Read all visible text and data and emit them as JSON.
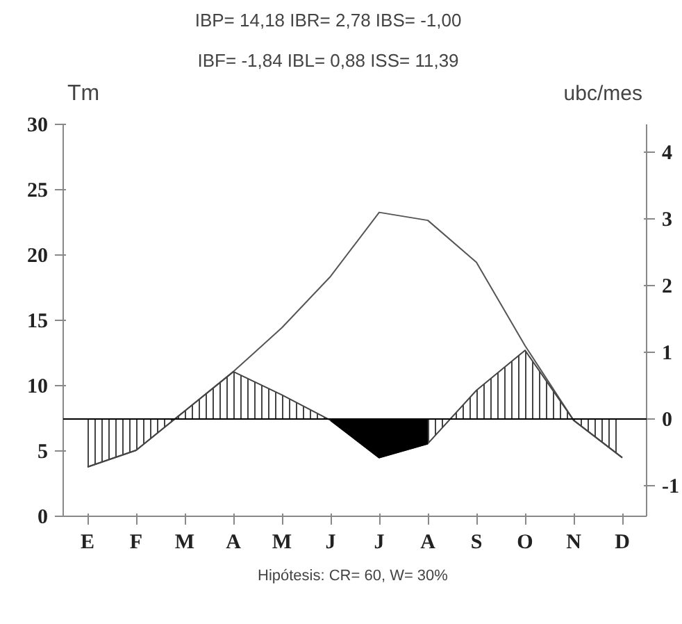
{
  "chart_data": {
    "type": "line",
    "ylabel": "Tm",
    "y2label": "ubc/mes",
    "annotations": [
      "IBP= 14,18   IBR= 2,78   IBS= -1,00",
      "IBF= -1,84   IBL= 0,88   ISS= 11,39",
      "Hipótesis: CR= 60,  W= 30%"
    ],
    "categories": [
      "E",
      "F",
      "M",
      "A",
      "M",
      "J",
      "J",
      "A",
      "S",
      "O",
      "N",
      "D"
    ],
    "ylim": [
      0,
      30
    ],
    "yticks": [
      0,
      5,
      10,
      15,
      20,
      25,
      30
    ],
    "y2lim": [
      -1.46,
      4.42
    ],
    "y2ticks": [
      -1,
      0,
      1,
      2,
      3,
      4
    ],
    "grid": false,
    "marker": "none",
    "line_style": "solid",
    "ref_lines": [
      {
        "axis": "y2",
        "value": 0,
        "color": "#000000"
      }
    ],
    "series": [
      {
        "axis": "y2",
        "color": "#555555",
        "values": [
          -0.72,
          -0.47,
          0.12,
          0.71,
          1.37,
          2.14,
          3.1,
          2.98,
          2.35,
          1.1,
          -0.02,
          -0.58
        ]
      },
      {
        "type": "area",
        "axis": "y2",
        "color": "#444444",
        "values": [
          -0.72,
          -0.47,
          0.12,
          0.71,
          0.36,
          -0.02,
          -0.58,
          -0.37,
          0.43,
          1.03,
          -0.02,
          -0.58
        ]
      },
      {
        "type": "area",
        "axis": "y2",
        "color": "#000000",
        "values": [
          null,
          null,
          null,
          null,
          null,
          -0.02,
          -0.58,
          -0.37,
          null,
          null,
          null,
          null
        ]
      }
    ]
  }
}
